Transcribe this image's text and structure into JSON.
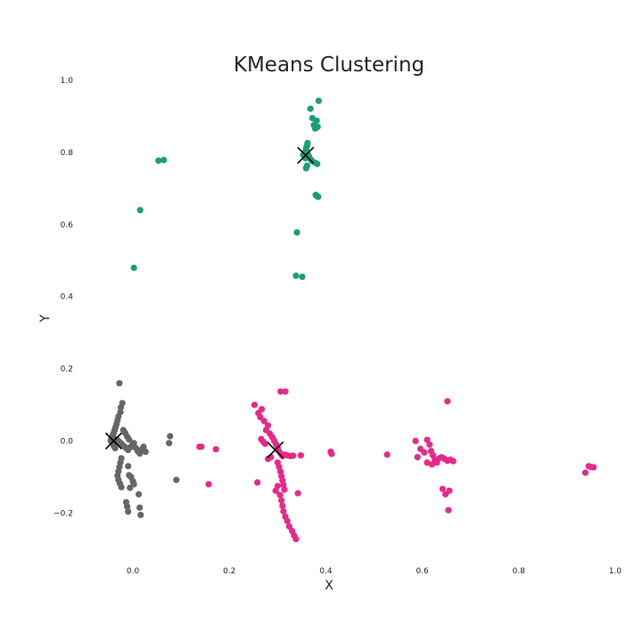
{
  "chart_data": {
    "type": "scatter",
    "title": "KMeans Clustering",
    "xlabel": "X",
    "ylabel": "Y",
    "xlim": [
      -0.1,
      1.0
    ],
    "ylim": [
      -0.33,
      1.0
    ],
    "xticks": [
      "0.0",
      "0.2",
      "0.4",
      "0.6",
      "0.8",
      "1.0"
    ],
    "yticks": [
      "−0.2",
      "0.0",
      "0.2",
      "0.4",
      "0.6",
      "0.8",
      "1.0"
    ],
    "xtick_values": [
      0.0,
      0.2,
      0.4,
      0.6,
      0.8,
      1.0
    ],
    "ytick_values": [
      -0.2,
      0.0,
      0.2,
      0.4,
      0.6,
      0.8,
      1.0
    ],
    "grid": false,
    "centroid_color": "#000000",
    "series": [
      {
        "color": "#1b9e77",
        "centroid": [
          0.358,
          0.792
        ],
        "points": [
          [
            0.385,
            0.943
          ],
          [
            0.368,
            0.921
          ],
          [
            0.372,
            0.895
          ],
          [
            0.381,
            0.888
          ],
          [
            0.375,
            0.876
          ],
          [
            0.383,
            0.871
          ],
          [
            0.378,
            0.866
          ],
          [
            0.362,
            0.826
          ],
          [
            0.361,
            0.818
          ],
          [
            0.359,
            0.812
          ],
          [
            0.36,
            0.805
          ],
          [
            0.356,
            0.8
          ],
          [
            0.362,
            0.797
          ],
          [
            0.353,
            0.793
          ],
          [
            0.365,
            0.789
          ],
          [
            0.358,
            0.784
          ],
          [
            0.369,
            0.78
          ],
          [
            0.372,
            0.775
          ],
          [
            0.378,
            0.771
          ],
          [
            0.382,
            0.768
          ],
          [
            0.361,
            0.763
          ],
          [
            0.359,
            0.756
          ],
          [
            0.379,
            0.682
          ],
          [
            0.381,
            0.679
          ],
          [
            0.384,
            0.677
          ],
          [
            0.34,
            0.578
          ],
          [
            0.338,
            0.458
          ],
          [
            0.351,
            0.455
          ],
          [
            0.053,
            0.777
          ],
          [
            0.064,
            0.779
          ],
          [
            0.015,
            0.64
          ],
          [
            0.002,
            0.48
          ]
        ]
      },
      {
        "color": "#666666",
        "centroid": [
          -0.04,
          0.0
        ],
        "points": [
          [
            -0.028,
            0.16
          ],
          [
            -0.022,
            0.105
          ],
          [
            -0.025,
            0.093
          ],
          [
            -0.026,
            0.08
          ],
          [
            -0.03,
            0.068
          ],
          [
            -0.032,
            0.057
          ],
          [
            -0.034,
            0.047
          ],
          [
            -0.036,
            0.038
          ],
          [
            -0.038,
            0.03
          ],
          [
            -0.04,
            0.022
          ],
          [
            -0.042,
            0.015
          ],
          [
            -0.044,
            0.008
          ],
          [
            -0.046,
            0.001
          ],
          [
            -0.043,
            -0.006
          ],
          [
            -0.04,
            -0.013
          ],
          [
            -0.037,
            -0.02
          ],
          [
            -0.034,
            0.005
          ],
          [
            -0.03,
            0.0
          ],
          [
            -0.026,
            -0.005
          ],
          [
            -0.022,
            -0.01
          ],
          [
            -0.018,
            -0.015
          ],
          [
            -0.014,
            -0.02
          ],
          [
            -0.01,
            -0.025
          ],
          [
            -0.006,
            -0.018
          ],
          [
            -0.002,
            -0.012
          ],
          [
            0.002,
            -0.006
          ],
          [
            0.006,
            -0.02
          ],
          [
            0.01,
            -0.028
          ],
          [
            0.014,
            -0.035
          ],
          [
            0.018,
            -0.024
          ],
          [
            0.022,
            -0.016
          ],
          [
            0.026,
            -0.03
          ],
          [
            -0.02,
            0.03
          ],
          [
            -0.016,
            0.022
          ],
          [
            -0.012,
            0.012
          ],
          [
            -0.008,
            0.004
          ],
          [
            -0.024,
            -0.048
          ],
          [
            -0.026,
            -0.06
          ],
          [
            -0.028,
            -0.072
          ],
          [
            -0.03,
            -0.084
          ],
          [
            -0.032,
            -0.096
          ],
          [
            -0.03,
            -0.108
          ],
          [
            -0.027,
            -0.118
          ],
          [
            -0.024,
            -0.128
          ],
          [
            -0.01,
            -0.07
          ],
          [
            -0.008,
            -0.095
          ],
          [
            -0.004,
            -0.1
          ],
          [
            0.0,
            -0.112
          ],
          [
            0.002,
            -0.12
          ],
          [
            -0.006,
            -0.13
          ],
          [
            0.012,
            -0.148
          ],
          [
            0.014,
            -0.185
          ],
          [
            0.016,
            -0.205
          ],
          [
            -0.014,
            -0.17
          ],
          [
            -0.012,
            -0.182
          ],
          [
            -0.01,
            -0.196
          ],
          [
            0.077,
            0.013
          ],
          [
            0.075,
            -0.006
          ],
          [
            0.09,
            -0.108
          ]
        ]
      },
      {
        "color": "#e7298a",
        "centroid": [
          0.295,
          -0.025
        ],
        "points": [
          [
            0.306,
            0.137
          ],
          [
            0.316,
            0.137
          ],
          [
            0.252,
            0.1
          ],
          [
            0.267,
            0.088
          ],
          [
            0.26,
            0.077
          ],
          [
            0.264,
            0.066
          ],
          [
            0.272,
            0.055
          ],
          [
            0.28,
            0.043
          ],
          [
            0.276,
            0.03
          ],
          [
            0.284,
            0.02
          ],
          [
            0.289,
            0.01
          ],
          [
            0.293,
            0.0
          ],
          [
            0.297,
            -0.01
          ],
          [
            0.3,
            -0.018
          ],
          [
            0.302,
            -0.027
          ],
          [
            0.306,
            -0.035
          ],
          [
            0.31,
            -0.042
          ],
          [
            0.315,
            -0.038
          ],
          [
            0.32,
            -0.04
          ],
          [
            0.326,
            -0.042
          ],
          [
            0.332,
            -0.041
          ],
          [
            0.286,
            -0.045
          ],
          [
            0.28,
            -0.05
          ],
          [
            0.274,
            -0.008
          ],
          [
            0.27,
            -0.002
          ],
          [
            0.266,
            0.005
          ],
          [
            0.3,
            -0.06
          ],
          [
            0.303,
            -0.072
          ],
          [
            0.306,
            -0.085
          ],
          [
            0.308,
            -0.098
          ],
          [
            0.31,
            -0.11
          ],
          [
            0.312,
            -0.122
          ],
          [
            0.314,
            -0.135
          ],
          [
            0.3,
            -0.125
          ],
          [
            0.296,
            -0.138
          ],
          [
            0.305,
            -0.15
          ],
          [
            0.308,
            -0.165
          ],
          [
            0.31,
            -0.18
          ],
          [
            0.312,
            -0.195
          ],
          [
            0.316,
            -0.21
          ],
          [
            0.32,
            -0.222
          ],
          [
            0.324,
            -0.237
          ],
          [
            0.33,
            -0.25
          ],
          [
            0.334,
            -0.262
          ],
          [
            0.338,
            -0.272
          ],
          [
            0.258,
            -0.115
          ],
          [
            0.342,
            -0.145
          ],
          [
            0.348,
            -0.04
          ],
          [
            0.41,
            -0.03
          ],
          [
            0.412,
            -0.036
          ],
          [
            0.527,
            -0.038
          ],
          [
            0.138,
            -0.016
          ],
          [
            0.142,
            -0.016
          ],
          [
            0.172,
            -0.023
          ],
          [
            0.157,
            -0.12
          ],
          [
            0.586,
            0.0
          ],
          [
            0.59,
            -0.045
          ],
          [
            0.596,
            -0.022
          ],
          [
            0.604,
            -0.032
          ],
          [
            0.61,
            0.003
          ],
          [
            0.615,
            -0.01
          ],
          [
            0.618,
            -0.028
          ],
          [
            0.622,
            -0.04
          ],
          [
            0.626,
            -0.052
          ],
          [
            0.63,
            -0.06
          ],
          [
            0.635,
            -0.048
          ],
          [
            0.64,
            -0.045
          ],
          [
            0.646,
            -0.05
          ],
          [
            0.652,
            -0.055
          ],
          [
            0.658,
            -0.052
          ],
          [
            0.664,
            -0.056
          ],
          [
            0.61,
            -0.06
          ],
          [
            0.62,
            -0.065
          ],
          [
            0.642,
            -0.133
          ],
          [
            0.648,
            -0.148
          ],
          [
            0.656,
            -0.138
          ],
          [
            0.652,
            0.11
          ],
          [
            0.654,
            -0.192
          ],
          [
            0.945,
            -0.07
          ],
          [
            0.95,
            -0.072
          ],
          [
            0.955,
            -0.073
          ],
          [
            0.938,
            -0.088
          ]
        ]
      }
    ]
  }
}
